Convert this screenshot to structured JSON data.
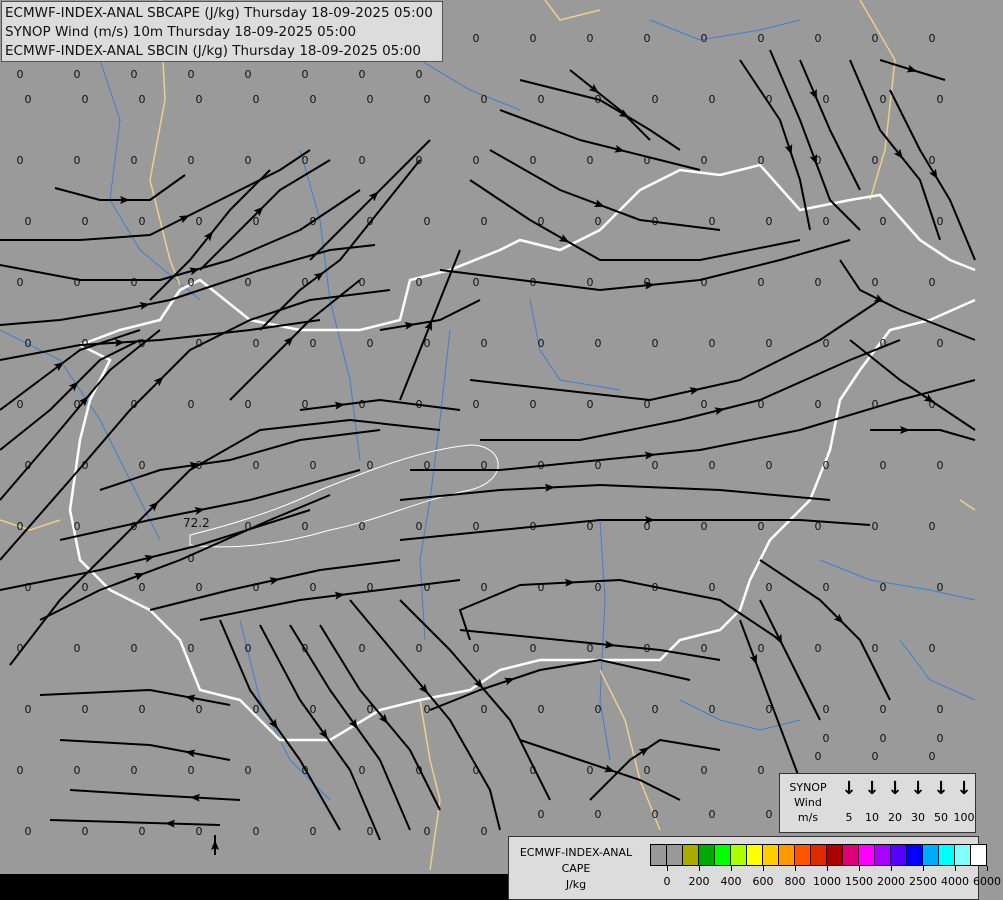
{
  "header": {
    "line1": "ECMWF-INDEX-ANAL SBCAPE (J/kg) Thursday 18-09-2025 05:00",
    "line2": "SYNOP Wind (m/s) 10m Thursday 18-09-2025 05:00",
    "line3": "ECMWF-INDEX-ANAL SBCIN (J/kg) Thursday 18-09-2025 05:00"
  },
  "colors": {
    "background": "#9a9a9a",
    "country_border": "#ffffff",
    "region_border": "#f0cc90",
    "river": "#3f7fd0",
    "streamline": "#000000",
    "cin_contour": "#ffffff"
  },
  "wind_legend": {
    "title": [
      "SYNOP",
      "Wind",
      "m/s"
    ],
    "arrow_icon": "↓",
    "speeds": [
      "5",
      "10",
      "20",
      "30",
      "50",
      "100"
    ]
  },
  "cape_legend": {
    "title": [
      "ECMWF-INDEX-ANAL",
      "CAPE",
      "J/kg"
    ],
    "colors": [
      "#999999",
      "#999999",
      "#aaaa00",
      "#00aa00",
      "#00ff00",
      "#aaff00",
      "#ffff00",
      "#ffcc00",
      "#ff9900",
      "#ff5500",
      "#dd2a00",
      "#aa0000",
      "#dd0077",
      "#ff00ff",
      "#aa00ff",
      "#5500ff",
      "#0000ff",
      "#00aaff",
      "#00ffff",
      "#80ffff",
      "#ffffff"
    ],
    "tick_labels": [
      "0",
      "200",
      "400",
      "600",
      "800",
      "1000",
      "1500",
      "2000",
      "2500",
      "4000",
      "6000"
    ]
  },
  "cin_contour_label": "72.2",
  "cin_values": [
    [
      "0",
      "0",
      "0",
      "0",
      "0",
      "0",
      "0",
      "0",
      "0",
      "0",
      "0",
      "0",
      "0",
      "0",
      "0",
      "0",
      "0"
    ],
    [
      "0",
      "0",
      "0",
      "0",
      "0",
      "0",
      "0",
      "0",
      "0",
      "0",
      "0",
      "0",
      "0",
      "0",
      "0",
      "0",
      "0"
    ],
    [
      "0",
      "0",
      "0",
      "0",
      "0",
      "0",
      "0",
      "0",
      "0",
      "0",
      "0",
      "0",
      "0",
      "0",
      "0",
      "0",
      "0"
    ],
    [
      "0",
      "0",
      "0",
      "0",
      "0",
      "0",
      "0",
      "0",
      "0",
      "0",
      "0",
      "0",
      "0",
      "0",
      "0",
      "0",
      "0"
    ],
    [
      "0",
      "0",
      "0",
      "0",
      "0",
      "0",
      "0",
      "0",
      "0",
      "0",
      "0",
      "0",
      "0",
      "0",
      "0",
      "0",
      "0"
    ],
    [
      "0",
      "0",
      "0",
      "0",
      "0",
      "0",
      "0",
      "0",
      "0",
      "0",
      "0",
      "0",
      "0",
      "0",
      "0",
      "0",
      "0"
    ],
    [
      "0",
      "0",
      "0",
      "0",
      "0",
      "0",
      "0",
      "0",
      "0",
      "0",
      "0",
      "0",
      "0",
      "0",
      "0",
      "0",
      "0"
    ],
    [
      "0",
      "0",
      "0",
      "0",
      "0",
      "0",
      "0",
      "0",
      "0",
      "0",
      "0",
      "0",
      "0",
      "0",
      "0",
      "0",
      "0"
    ],
    [
      "0",
      "0",
      "0",
      "0",
      "0",
      "0",
      "0",
      "0",
      "0",
      "0",
      "0",
      "0",
      "0",
      "0",
      "0",
      "0",
      "0"
    ],
    [
      "0",
      "0",
      "0",
      "0",
      "0",
      "0",
      "0",
      "0",
      "0",
      "0",
      "0",
      "0",
      "0",
      "0",
      "0",
      "0",
      "0"
    ],
    [
      "0",
      "0",
      "0",
      "0",
      "0",
      "0",
      "0",
      "0",
      "0",
      "0",
      "0",
      "0",
      "0",
      "0",
      "0",
      "0",
      "0"
    ],
    [
      "0",
      "0",
      "0",
      "0",
      "0",
      "0",
      "0",
      "0",
      "0",
      "0",
      "0",
      "0",
      "0",
      "0",
      "0",
      "0",
      "0"
    ],
    [
      "0",
      "0",
      "0",
      "0",
      "0",
      "0",
      "0",
      "0",
      "0",
      "0",
      "0",
      "0",
      "0",
      "0",
      "0",
      "0",
      "0"
    ],
    [
      "0",
      "0",
      "0",
      "0",
      "0",
      "0",
      "0",
      "0",
      "0",
      "0",
      "0",
      "0",
      "0",
      "0",
      "0",
      "0",
      "0"
    ]
  ]
}
